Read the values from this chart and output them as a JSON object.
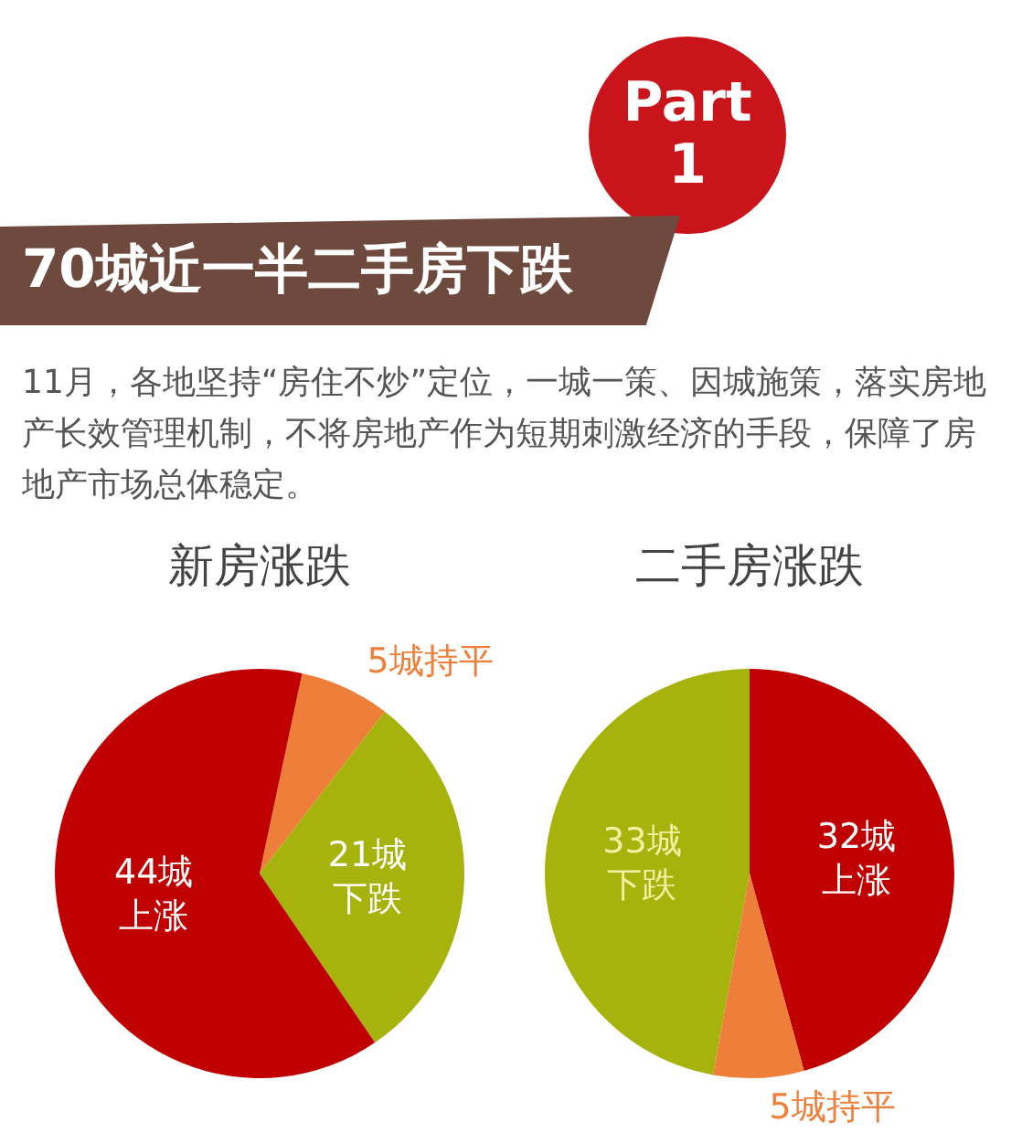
{
  "chart_data": [
    {
      "type": "other",
      "title": "70城近一半二手房下跌",
      "annotations": [
        "Part 1",
        "11月，各地坚持“房住不炒”定位，一城一策、因城施策，落实房地产长效管理机制，不将房地产作为短期刺激经济的手段，保障了房地产市场总体稳定。"
      ]
    },
    {
      "type": "pie",
      "title": "新房涨跌",
      "categories": [
        null,
        null,
        null
      ],
      "values": [
        5,
        21,
        44
      ],
      "colors": [
        "#ee7f3a",
        "#a6b30c",
        "#c00000"
      ],
      "value_labels": [
        "5城持平",
        "21城下跌",
        "44城上涨"
      ]
    },
    {
      "type": "pie",
      "title": "二手房涨跌",
      "categories": [
        null,
        null,
        null
      ],
      "values": [
        32,
        5,
        33
      ],
      "colors": [
        "#c00000",
        "#ee7f3a",
        "#a6b30c"
      ],
      "value_labels": [
        "32城上涨",
        "5城持平",
        "33城下跌"
      ]
    }
  ]
}
